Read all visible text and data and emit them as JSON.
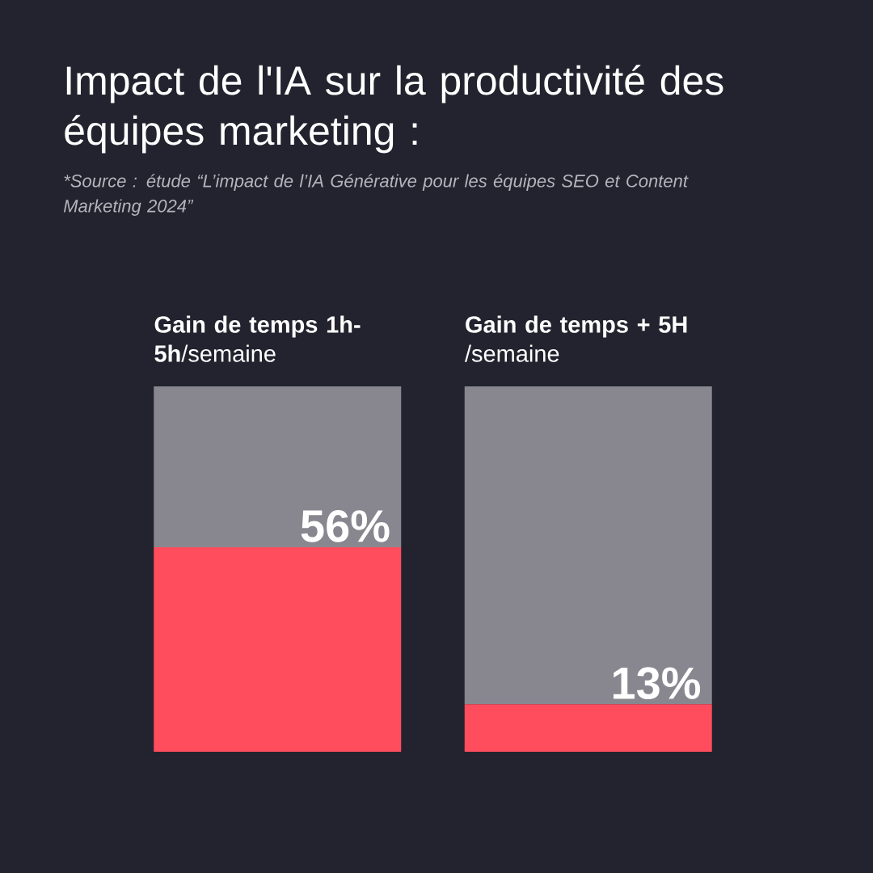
{
  "chart_data": {
    "type": "bar",
    "stacked": true,
    "title": "Impact de l'IA sur la productivité des équipes marketing :",
    "annotations": [
      "*Source : étude “L’impact de l’IA Générative pour les équipes SEO et Content Marketing 2024”"
    ],
    "categories": [
      "**Gain de temps 1h-5h**/semaine",
      "**Gain de temps + 5H** /semaine"
    ],
    "ylim": [
      0,
      100
    ],
    "series": [
      {
        "color": "#ff4d5e",
        "values": [
          56,
          13
        ],
        "value_labels": [
          "56%",
          "13%"
        ]
      },
      {
        "color": "#88878f",
        "values": [
          44,
          87
        ]
      }
    ]
  }
}
